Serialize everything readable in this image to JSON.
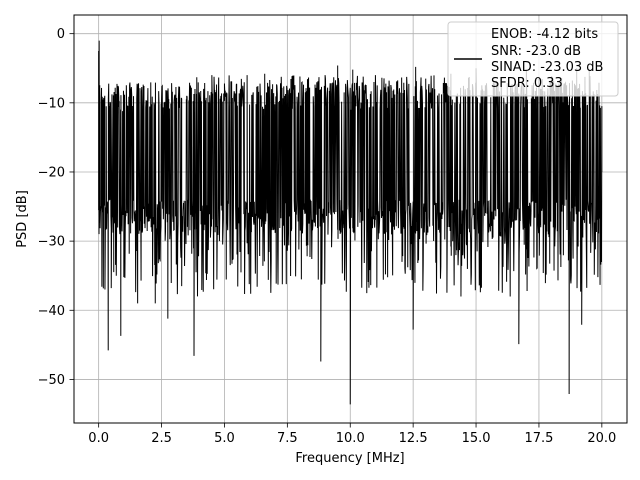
{
  "chart_data": {
    "type": "line",
    "title": "",
    "xlabel": "Frequency [MHz]",
    "ylabel": "PSD [dB]",
    "xlim": [
      -0.98,
      21.0
    ],
    "ylim": [
      -56.3,
      2.7
    ],
    "xticks": [
      0.0,
      2.5,
      5.0,
      7.5,
      10.0,
      12.5,
      15.0,
      17.5,
      20.0
    ],
    "xtick_labels": [
      "0.0",
      "2.5",
      "5.0",
      "7.5",
      "10.0",
      "12.5",
      "15.0",
      "17.5",
      "20.0"
    ],
    "yticks": [
      0,
      -10,
      -20,
      -30,
      -40,
      -50
    ],
    "ytick_labels": [
      "0",
      "−10",
      "−20",
      "−30",
      "−40",
      "−50"
    ],
    "grid": true,
    "legend": {
      "position": "top-right",
      "entries": [
        "ENOB: -4.12 bits",
        "SNR: -23.0 dB",
        "SINAD: -23.03 dB",
        "SFDR: 0.33"
      ]
    },
    "series": [
      {
        "color": "#000000",
        "x_range": [
          0.0,
          20.0
        ],
        "baseline_db": -17.5,
        "band_top_db": -10.0,
        "band_bottom_db": -25.0,
        "points": [
          [
            0.0,
            -2.5
          ],
          [
            0.02,
            -1.0
          ],
          [
            0.05,
            -18.5
          ],
          [
            0.1,
            -9.8
          ],
          [
            0.15,
            -24.5
          ],
          [
            0.25,
            -37.0
          ],
          [
            0.3,
            -10.5
          ],
          [
            0.38,
            -45.8
          ],
          [
            0.45,
            -10.2
          ],
          [
            0.5,
            -36.8
          ],
          [
            0.6,
            -10.4
          ],
          [
            0.7,
            -35.0
          ],
          [
            0.8,
            -10.6
          ],
          [
            0.88,
            -43.7
          ],
          [
            0.95,
            -11.2
          ],
          [
            1.0,
            -35.2
          ],
          [
            1.2,
            -11.0
          ],
          [
            1.55,
            -39.0
          ],
          [
            1.8,
            -10.2
          ],
          [
            2.25,
            -39.0
          ],
          [
            2.5,
            -9.6
          ],
          [
            2.75,
            -41.2
          ],
          [
            3.0,
            -9.8
          ],
          [
            3.3,
            -36.5
          ],
          [
            3.5,
            -9.0
          ],
          [
            3.79,
            -46.6
          ],
          [
            3.9,
            -6.3
          ],
          [
            4.5,
            -6.0
          ],
          [
            5.0,
            -7.2
          ],
          [
            5.9,
            -6.0
          ],
          [
            6.6,
            -5.8
          ],
          [
            8.0,
            -6.2
          ],
          [
            8.83,
            -47.4
          ],
          [
            9.0,
            -6.0
          ],
          [
            9.5,
            -4.6
          ],
          [
            10.0,
            -53.6
          ],
          [
            10.1,
            -5.2
          ],
          [
            11.0,
            -6.0
          ],
          [
            12.5,
            -42.8
          ],
          [
            12.6,
            -4.8
          ],
          [
            13.0,
            -6.5
          ],
          [
            14.0,
            -5.8
          ],
          [
            14.4,
            -38.0
          ],
          [
            15.0,
            -5.0
          ],
          [
            16.0,
            -6.6
          ],
          [
            16.7,
            -44.9
          ],
          [
            17.0,
            -5.3
          ],
          [
            17.5,
            -6.5
          ],
          [
            18.7,
            -52.1
          ],
          [
            19.0,
            -5.0
          ],
          [
            19.2,
            -42.1
          ],
          [
            19.5,
            -5.2
          ],
          [
            19.8,
            -8.5
          ],
          [
            20.0,
            -20.0
          ]
        ]
      }
    ]
  }
}
